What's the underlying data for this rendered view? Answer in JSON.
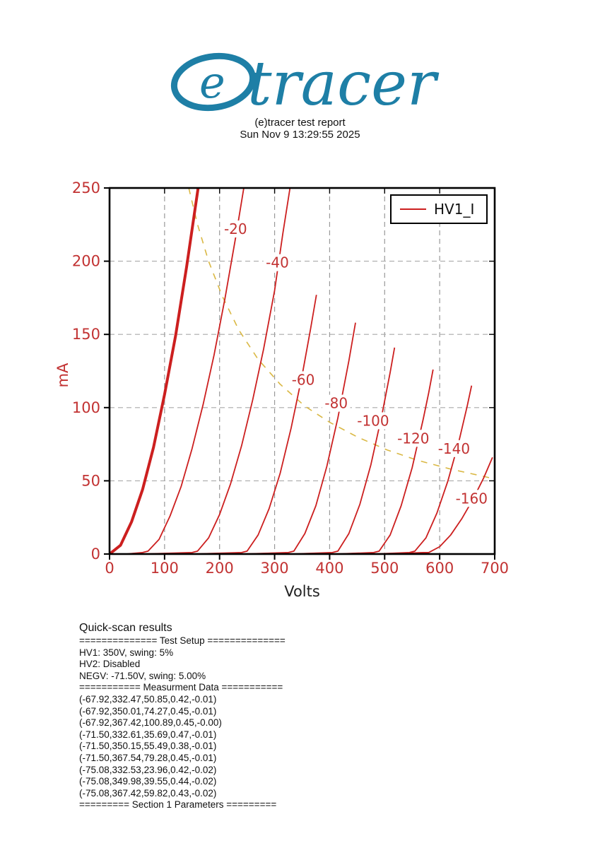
{
  "header": {
    "logo_e": "e",
    "logo_word": "tracer",
    "title": "(e)tracer test report",
    "timestamp": "Sun Nov 9 13:29:55 2025",
    "logo_color": "#1e7fa6"
  },
  "chart_data": {
    "type": "line",
    "xlabel": "Volts",
    "ylabel": "mA",
    "xlim": [
      0,
      700
    ],
    "ylim": [
      0,
      250
    ],
    "xticks": [
      0,
      100,
      200,
      300,
      400,
      500,
      600,
      700
    ],
    "yticks": [
      0,
      50,
      100,
      150,
      200,
      250
    ],
    "grid": true,
    "legend": {
      "label": "HV1_I",
      "position": "upper right"
    },
    "colors": {
      "curve": "#cc1f1f",
      "tick_text": "#c23232",
      "dissipation": "#dab844",
      "grid_v": "#999999",
      "grid_h": "#aaaaaa",
      "frame": "#000000",
      "label_text": "#c23232"
    },
    "series": [
      {
        "name": "grid 0V",
        "width": 4.0,
        "points": [
          [
            0,
            0
          ],
          [
            20,
            6
          ],
          [
            40,
            22
          ],
          [
            60,
            44
          ],
          [
            80,
            73
          ],
          [
            100,
            109
          ],
          [
            120,
            149
          ],
          [
            140,
            196
          ],
          [
            161,
            250
          ]
        ]
      },
      {
        "name": "grid -20V",
        "width": 1.8,
        "points": [
          [
            30,
            0
          ],
          [
            60,
            1
          ],
          [
            70,
            2
          ],
          [
            90,
            10
          ],
          [
            110,
            26
          ],
          [
            130,
            46
          ],
          [
            150,
            72
          ],
          [
            170,
            102
          ],
          [
            190,
            136
          ],
          [
            210,
            175
          ],
          [
            230,
            218
          ],
          [
            244,
            250
          ]
        ]
      },
      {
        "name": "grid -40V",
        "width": 1.8,
        "points": [
          [
            60,
            0
          ],
          [
            150,
            1
          ],
          [
            160,
            2
          ],
          [
            180,
            11
          ],
          [
            200,
            27
          ],
          [
            220,
            48
          ],
          [
            240,
            74
          ],
          [
            260,
            105
          ],
          [
            280,
            140
          ],
          [
            300,
            180
          ],
          [
            315,
            219
          ],
          [
            328,
            250
          ]
        ]
      },
      {
        "name": "grid -60V",
        "width": 1.8,
        "points": [
          [
            150,
            0
          ],
          [
            240,
            1
          ],
          [
            250,
            2
          ],
          [
            270,
            13
          ],
          [
            290,
            31
          ],
          [
            310,
            55
          ],
          [
            330,
            86
          ],
          [
            350,
            122
          ],
          [
            365,
            153
          ],
          [
            376,
            177
          ]
        ]
      },
      {
        "name": "grid -80V",
        "width": 1.8,
        "points": [
          [
            240,
            0
          ],
          [
            325,
            1
          ],
          [
            335,
            2
          ],
          [
            355,
            14
          ],
          [
            375,
            33
          ],
          [
            395,
            60
          ],
          [
            415,
            93
          ],
          [
            435,
            132
          ],
          [
            447,
            158
          ]
        ]
      },
      {
        "name": "grid -100V",
        "width": 1.8,
        "points": [
          [
            330,
            0
          ],
          [
            405,
            1
          ],
          [
            415,
            2
          ],
          [
            435,
            14
          ],
          [
            455,
            34
          ],
          [
            475,
            61
          ],
          [
            495,
            95
          ],
          [
            510,
            124
          ],
          [
            518,
            141
          ]
        ]
      },
      {
        "name": "grid -120V",
        "width": 1.8,
        "points": [
          [
            410,
            0
          ],
          [
            480,
            1
          ],
          [
            490,
            2
          ],
          [
            510,
            13
          ],
          [
            530,
            33
          ],
          [
            550,
            59
          ],
          [
            570,
            92
          ],
          [
            580,
            110
          ],
          [
            588,
            126
          ]
        ]
      },
      {
        "name": "grid -140V",
        "width": 1.8,
        "points": [
          [
            480,
            0
          ],
          [
            545,
            1
          ],
          [
            555,
            2
          ],
          [
            575,
            11
          ],
          [
            595,
            28
          ],
          [
            615,
            50
          ],
          [
            635,
            77
          ],
          [
            650,
            101
          ],
          [
            658,
            115
          ]
        ]
      },
      {
        "name": "grid -160V",
        "width": 1.8,
        "points": [
          [
            500,
            0
          ],
          [
            570,
            1
          ],
          [
            580,
            1
          ],
          [
            600,
            5
          ],
          [
            620,
            13
          ],
          [
            640,
            24
          ],
          [
            660,
            37
          ],
          [
            680,
            52
          ],
          [
            696,
            66
          ]
        ]
      }
    ],
    "curve_labels": [
      {
        "text": "-20",
        "v": 229,
        "ma": 222
      },
      {
        "text": "-40",
        "v": 305,
        "ma": 199
      },
      {
        "text": "-60",
        "v": 352,
        "ma": 119
      },
      {
        "text": "-80",
        "v": 412,
        "ma": 103
      },
      {
        "text": "-100",
        "v": 479,
        "ma": 91
      },
      {
        "text": "-120",
        "v": 552,
        "ma": 79
      },
      {
        "text": "-140",
        "v": 626,
        "ma": 72
      },
      {
        "text": "-160",
        "v": 658,
        "ma": 38
      }
    ],
    "dissipation_curve": {
      "style": "dashed",
      "points": [
        [
          144,
          250
        ],
        [
          160,
          225
        ],
        [
          180,
          200
        ],
        [
          205,
          176
        ],
        [
          235,
          153
        ],
        [
          270,
          133
        ],
        [
          310,
          116
        ],
        [
          355,
          101
        ],
        [
          400,
          90
        ],
        [
          450,
          80
        ],
        [
          505,
          71
        ],
        [
          560,
          64
        ],
        [
          620,
          58
        ],
        [
          692,
          52
        ]
      ]
    }
  },
  "results": {
    "title": "Quick-scan results",
    "lines": [
      "============== Test Setup ==============",
      "HV1: 350V, swing: 5%",
      "HV2: Disabled",
      "NEGV: -71.50V, swing: 5.00%",
      "=========== Measurment Data ===========",
      "(-67.92,332.47,50.85,0.42,-0.01)",
      "(-67.92,350.01,74.27,0.45,-0.01)",
      "(-67.92,367.42,100.89,0.45,-0.00)",
      "(-71.50,332.61,35.69,0.47,-0.01)",
      "(-71.50,350.15,55.49,0.38,-0.01)",
      "(-71.50,367.54,79.28,0.45,-0.01)",
      "(-75.08,332.53,23.96,0.42,-0.02)",
      "(-75.08,349.98,39.55,0.44,-0.02)",
      "(-75.08,367.42,59.82,0.43,-0.02)",
      "========= Section 1 Parameters ========="
    ]
  }
}
